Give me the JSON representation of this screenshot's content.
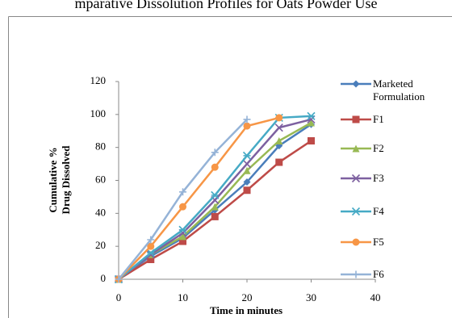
{
  "chart_data": {
    "type": "line",
    "title": "mparative Dissolution Profiles for Oats Powder Use",
    "xlabel": "Time in minutes",
    "ylabel": [
      "Cumulative %",
      "Drug Dissolved"
    ],
    "x": [
      0,
      5,
      10,
      15,
      20,
      25,
      30
    ],
    "xlim": [
      0,
      40
    ],
    "xticks": [
      0,
      10,
      20,
      30,
      40
    ],
    "ylim": [
      0,
      120
    ],
    "yticks": [
      0,
      20,
      40,
      60,
      80,
      100,
      120
    ],
    "grid": false,
    "legend": "right",
    "series": [
      {
        "name": "Marketed Formulation",
        "color": "#4a7ebb",
        "marker": "diamond",
        "values": [
          0,
          14,
          25,
          42,
          59,
          81,
          94
        ]
      },
      {
        "name": "F1",
        "color": "#be4b48",
        "marker": "square",
        "values": [
          0,
          12,
          23,
          38,
          54,
          71,
          84
        ]
      },
      {
        "name": "F2",
        "color": "#98b954",
        "marker": "triangle",
        "values": [
          0,
          15,
          26,
          44,
          66,
          84,
          95
        ]
      },
      {
        "name": "F3",
        "color": "#7d60a0",
        "marker": "x",
        "values": [
          0,
          15,
          28,
          48,
          70,
          92,
          97
        ]
      },
      {
        "name": "F4",
        "color": "#46aac5",
        "marker": "star",
        "values": [
          0,
          16,
          30,
          51,
          75,
          98,
          99
        ]
      },
      {
        "name": "F5",
        "color": "#f79646",
        "marker": "circle",
        "values": [
          0,
          20,
          44,
          68,
          93,
          98,
          null
        ]
      },
      {
        "name": "F6",
        "color": "#95b3d7",
        "marker": "plus",
        "values": [
          0,
          24,
          53,
          77,
          97,
          null,
          null
        ]
      }
    ]
  }
}
